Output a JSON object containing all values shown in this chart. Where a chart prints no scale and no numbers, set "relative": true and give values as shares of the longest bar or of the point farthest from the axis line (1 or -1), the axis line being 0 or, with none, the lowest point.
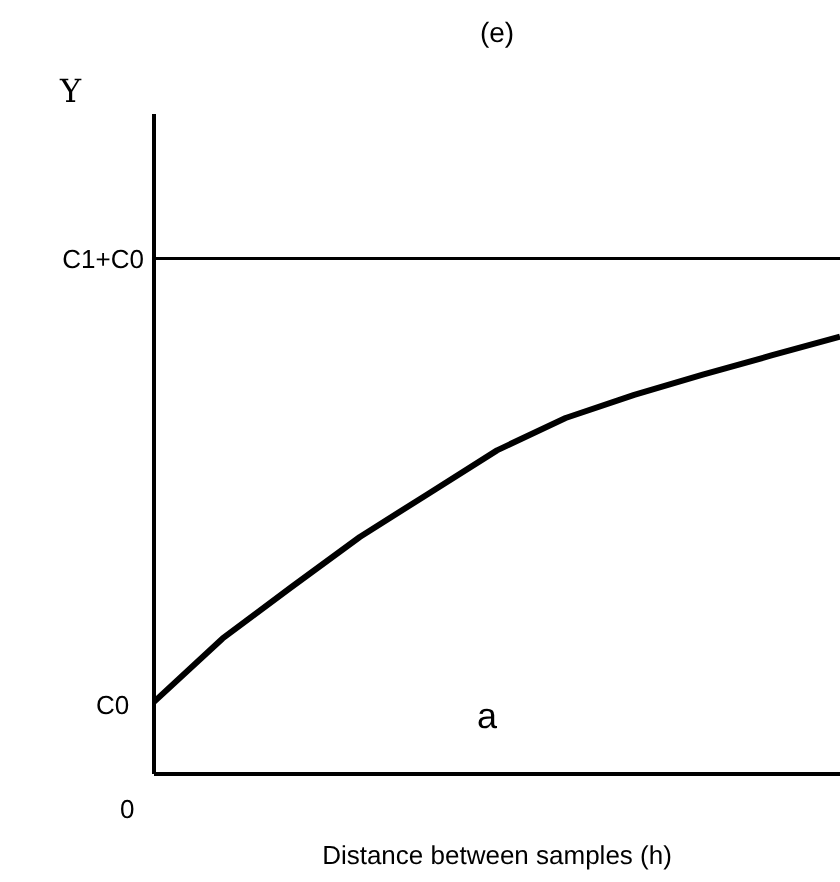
{
  "chart_data": {
    "type": "line",
    "title": "(e)",
    "xlabel": "Distance between samples (h)",
    "relative": true,
    "categories": [
      null,
      null,
      null,
      null,
      null,
      null,
      null,
      null,
      null,
      null,
      null
    ],
    "series": [
      {
        "color": "#000000",
        "values": [
          0.165,
          0.31,
          0.427,
          0.542,
          0.641,
          0.74,
          0.814,
          0.867,
          0.913,
          0.957,
          1
        ]
      }
    ],
    "ref_lines": [
      {
        "axis": "y",
        "value": 1.179,
        "label": "C1+C0",
        "color": "#000000"
      }
    ],
    "annotations": [
      "Υ",
      "C0",
      "0",
      "a"
    ],
    "marker": "none",
    "line_style": "solid",
    "grid": false,
    "legend": false
  }
}
